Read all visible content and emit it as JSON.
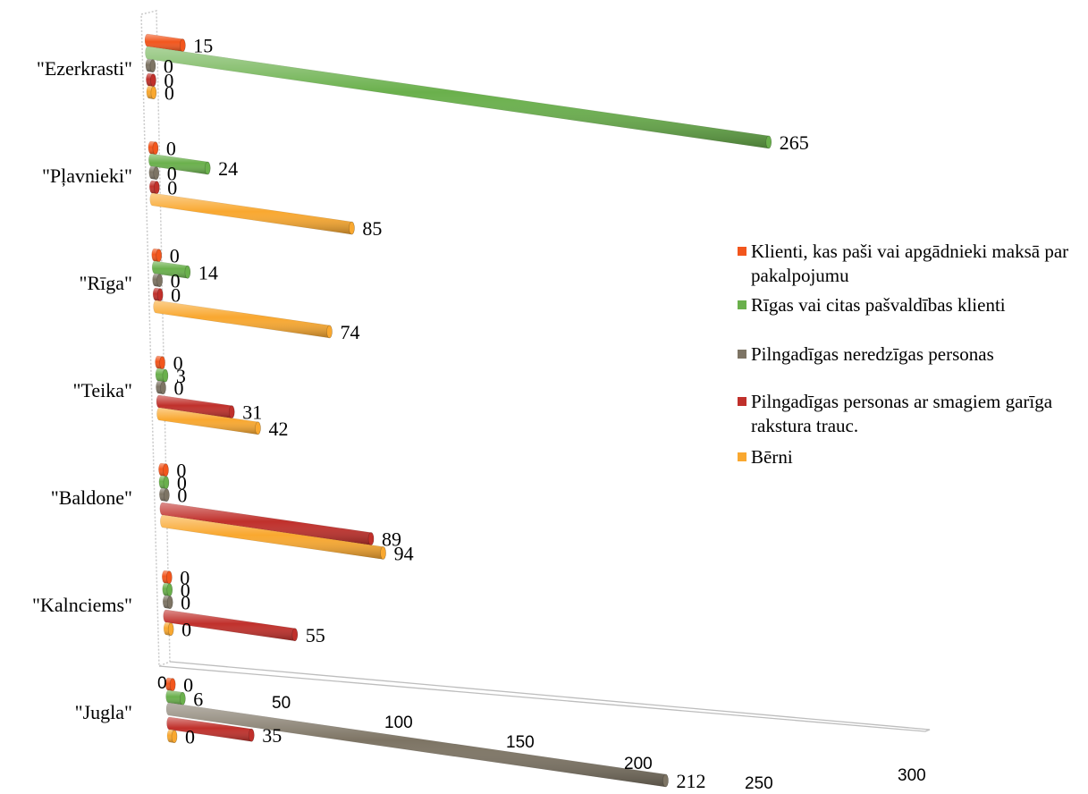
{
  "chart_data": {
    "type": "bar",
    "orientation": "horizontal",
    "categories": [
      "\"Ezerkrasti\"",
      "\"Pļavnieki\"",
      "\"Rīga\"",
      "\"Teika\"",
      "\"Baldone\"",
      "\"Kalnciems\"",
      "\"Jugla\""
    ],
    "series": [
      {
        "name": "Klienti, kas paši vai apgādnieki maksā par pakalpojumu",
        "color": "#f2561d",
        "values": [
          15,
          0,
          0,
          0,
          0,
          0,
          0
        ]
      },
      {
        "name": "Rīgas vai citas pašvaldības klienti",
        "color": "#6ab04c",
        "values": [
          265,
          24,
          14,
          3,
          0,
          0,
          6
        ]
      },
      {
        "name": "Pilngadīgas neredzīgas personas",
        "color": "#7d7464",
        "values": [
          0,
          0,
          0,
          0,
          0,
          0,
          212
        ]
      },
      {
        "name": "Pilngadīgas personas ar smagiem garīga rakstura trauc.",
        "color": "#c0302b",
        "values": [
          0,
          0,
          0,
          31,
          89,
          55,
          35
        ]
      },
      {
        "name": "Bērni",
        "color": "#f9a830",
        "values": [
          0,
          85,
          74,
          42,
          94,
          0,
          0
        ]
      }
    ],
    "x_ticks": [
      "0",
      "50",
      "100",
      "150",
      "200",
      "250",
      "300"
    ],
    "xlim": [
      0,
      300
    ],
    "legend_position": "right",
    "grid": false
  }
}
